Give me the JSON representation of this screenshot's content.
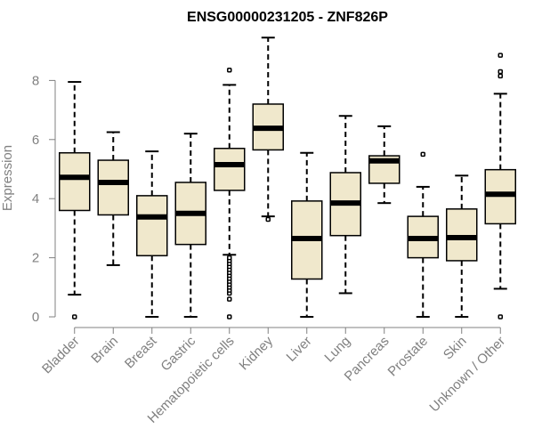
{
  "chart_data": {
    "type": "box",
    "title": "ENSG00000231205 - ZNF826P",
    "ylabel": "Expression",
    "xlabel": "",
    "ylim": [
      0,
      9.5
    ],
    "yticks": [
      0,
      2,
      4,
      6,
      8
    ],
    "grid": false,
    "box_color": "#f0e8cc",
    "categories": [
      "Bladder",
      "Brain",
      "Breast",
      "Gastric",
      "Hematopoietic cells",
      "Kidney",
      "Liver",
      "Lung",
      "Pancreas",
      "Prostate",
      "Skin",
      "Unknown / Other"
    ],
    "boxes": [
      {
        "whisker_low": 0.75,
        "q1": 3.6,
        "median": 4.72,
        "q3": 5.55,
        "whisker_high": 7.95,
        "outliers": [
          0.0
        ]
      },
      {
        "whisker_low": 1.75,
        "q1": 3.45,
        "median": 4.55,
        "q3": 5.3,
        "whisker_high": 6.25,
        "outliers": []
      },
      {
        "whisker_low": 0.0,
        "q1": 2.07,
        "median": 3.38,
        "q3": 4.1,
        "whisker_high": 5.6,
        "outliers": []
      },
      {
        "whisker_low": 0.0,
        "q1": 2.45,
        "median": 3.5,
        "q3": 4.55,
        "whisker_high": 6.2,
        "outliers": []
      },
      {
        "whisker_low": 2.1,
        "q1": 4.28,
        "median": 5.15,
        "q3": 5.7,
        "whisker_high": 7.85,
        "outliers": [
          8.35,
          0.0,
          0.6,
          0.8,
          0.9,
          1.0,
          1.1,
          1.2,
          1.3,
          1.4,
          1.5,
          1.6,
          1.7,
          1.8,
          1.9,
          2.0
        ]
      },
      {
        "whisker_low": 3.4,
        "q1": 5.65,
        "median": 6.38,
        "q3": 7.2,
        "whisker_high": 9.45,
        "outliers": [
          3.3
        ]
      },
      {
        "whisker_low": 0.0,
        "q1": 1.28,
        "median": 2.65,
        "q3": 3.92,
        "whisker_high": 5.55,
        "outliers": []
      },
      {
        "whisker_low": 0.8,
        "q1": 2.75,
        "median": 3.85,
        "q3": 4.88,
        "whisker_high": 6.8,
        "outliers": []
      },
      {
        "whisker_low": 3.85,
        "q1": 4.52,
        "median": 5.28,
        "q3": 5.45,
        "whisker_high": 6.45,
        "outliers": []
      },
      {
        "whisker_low": 0.0,
        "q1": 2.0,
        "median": 2.65,
        "q3": 3.4,
        "whisker_high": 4.4,
        "outliers": [
          5.5
        ]
      },
      {
        "whisker_low": 0.0,
        "q1": 1.9,
        "median": 2.68,
        "q3": 3.65,
        "whisker_high": 4.78,
        "outliers": []
      },
      {
        "whisker_low": 0.95,
        "q1": 3.15,
        "median": 4.15,
        "q3": 4.98,
        "whisker_high": 7.55,
        "outliers": [
          8.85,
          8.3,
          8.15,
          0.0
        ]
      }
    ]
  }
}
